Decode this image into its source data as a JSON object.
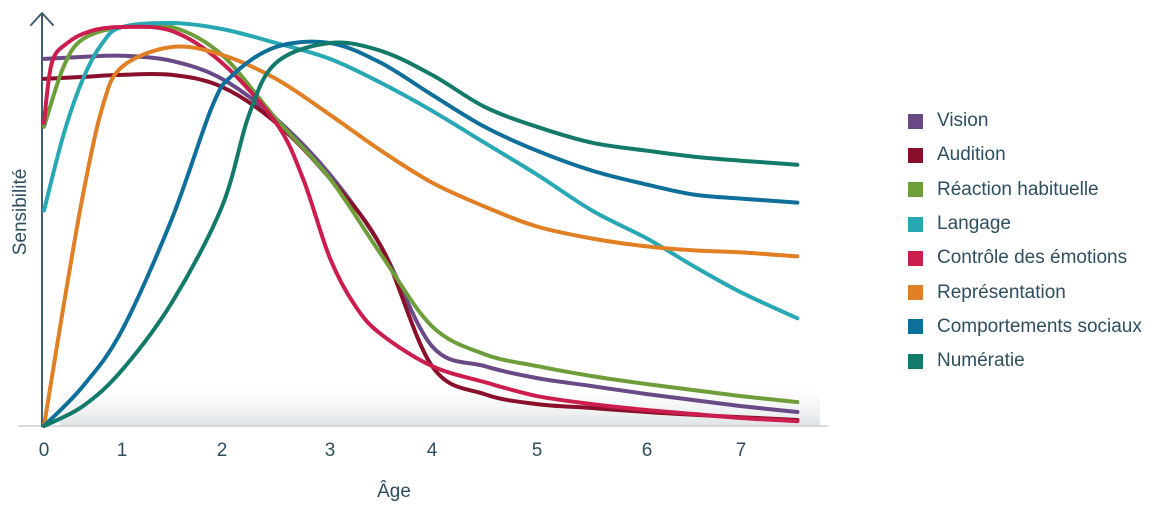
{
  "chart_data": {
    "type": "line",
    "title": "",
    "xlabel": "Âge",
    "ylabel": "Sensibilité",
    "xlim": [
      0,
      7.6
    ],
    "ylim": [
      0,
      100
    ],
    "x_ticks": [
      "0",
      "1",
      "2",
      "3",
      "4",
      "5",
      "6",
      "7"
    ],
    "y_ticks_shown": false,
    "grid": false,
    "legend_position": "right",
    "series": [
      {
        "name": "Vision",
        "color": "#6a4a86",
        "points": [
          [
            0,
            92
          ],
          [
            0.5,
            92.5
          ],
          [
            1,
            92.8
          ],
          [
            1.5,
            91.5
          ],
          [
            2,
            87
          ],
          [
            2.5,
            77
          ],
          [
            3,
            63
          ],
          [
            3.5,
            45
          ],
          [
            4,
            20
          ],
          [
            4.5,
            15
          ],
          [
            5,
            12
          ],
          [
            5.5,
            10
          ],
          [
            6,
            8
          ],
          [
            6.5,
            6.5
          ],
          [
            7,
            5
          ],
          [
            7.6,
            3.5
          ]
        ]
      },
      {
        "name": "Audition",
        "color": "#8a0f2a",
        "points": [
          [
            0,
            87
          ],
          [
            0.5,
            87.5
          ],
          [
            1,
            88
          ],
          [
            1.5,
            88
          ],
          [
            2,
            85
          ],
          [
            2.5,
            76
          ],
          [
            3,
            62
          ],
          [
            3.5,
            45
          ],
          [
            4,
            15
          ],
          [
            4.5,
            8
          ],
          [
            5,
            5.5
          ],
          [
            5.5,
            4.5
          ],
          [
            6,
            3.5
          ],
          [
            6.5,
            2.8
          ],
          [
            7,
            2.2
          ],
          [
            7.6,
            1.5
          ]
        ]
      },
      {
        "name": "Réaction habituelle",
        "color": "#6e9e3a",
        "points": [
          [
            0,
            75
          ],
          [
            0.25,
            90
          ],
          [
            0.5,
            97
          ],
          [
            1,
            100
          ],
          [
            1.5,
            100
          ],
          [
            2,
            93
          ],
          [
            2.5,
            77
          ],
          [
            3,
            62
          ],
          [
            3.5,
            43
          ],
          [
            4,
            25
          ],
          [
            4.5,
            18
          ],
          [
            5,
            15
          ],
          [
            5.5,
            12.5
          ],
          [
            6,
            10.5
          ],
          [
            6.5,
            9
          ],
          [
            7,
            7.5
          ],
          [
            7.6,
            6
          ]
        ]
      },
      {
        "name": "Langage",
        "color": "#27a8b3",
        "points": [
          [
            0,
            54
          ],
          [
            0.25,
            73
          ],
          [
            0.5,
            87
          ],
          [
            0.75,
            96
          ],
          [
            1,
            100
          ],
          [
            1.5,
            101
          ],
          [
            2,
            99.5
          ],
          [
            2.5,
            96
          ],
          [
            3,
            92
          ],
          [
            3.5,
            86
          ],
          [
            4,
            79
          ],
          [
            4.5,
            71
          ],
          [
            5,
            63
          ],
          [
            5.5,
            54
          ],
          [
            6,
            47
          ],
          [
            6.5,
            40
          ],
          [
            7,
            33.5
          ],
          [
            7.6,
            27
          ]
        ]
      },
      {
        "name": "Contrôle des émotions",
        "color": "#cc1d4f",
        "points": [
          [
            0,
            76
          ],
          [
            0.1,
            91
          ],
          [
            0.3,
            96
          ],
          [
            0.6,
            99
          ],
          [
            1,
            100
          ],
          [
            1.5,
            99
          ],
          [
            2,
            91
          ],
          [
            2.5,
            76
          ],
          [
            2.75,
            62
          ],
          [
            3,
            42
          ],
          [
            3.25,
            30
          ],
          [
            3.5,
            23
          ],
          [
            4,
            15
          ],
          [
            4.5,
            11
          ],
          [
            5,
            7.5
          ],
          [
            5.5,
            5.5
          ],
          [
            6,
            4
          ],
          [
            6.5,
            3
          ],
          [
            7,
            2
          ],
          [
            7.6,
            1.2
          ]
        ]
      },
      {
        "name": "Représentation",
        "color": "#e07f24",
        "points": [
          [
            0,
            0
          ],
          [
            0.25,
            30
          ],
          [
            0.5,
            58
          ],
          [
            0.75,
            80
          ],
          [
            1,
            90
          ],
          [
            1.5,
            95
          ],
          [
            2,
            93
          ],
          [
            2.5,
            87
          ],
          [
            3,
            78
          ],
          [
            3.5,
            69
          ],
          [
            4,
            61
          ],
          [
            4.5,
            55
          ],
          [
            5,
            50
          ],
          [
            5.5,
            47
          ],
          [
            6,
            45
          ],
          [
            6.5,
            44
          ],
          [
            7,
            43.5
          ],
          [
            7.6,
            42.5
          ]
        ]
      },
      {
        "name": "Comportements sociaux",
        "color": "#0e6f9a",
        "points": [
          [
            0,
            0
          ],
          [
            0.5,
            10
          ],
          [
            1,
            24
          ],
          [
            1.5,
            52
          ],
          [
            1.9,
            80
          ],
          [
            2.1,
            88
          ],
          [
            2.5,
            95
          ],
          [
            3,
            96
          ],
          [
            3.5,
            91
          ],
          [
            4,
            83
          ],
          [
            4.5,
            75
          ],
          [
            5,
            69
          ],
          [
            5.5,
            64
          ],
          [
            6,
            60.5
          ],
          [
            6.5,
            58
          ],
          [
            7,
            57
          ],
          [
            7.6,
            56
          ]
        ]
      },
      {
        "name": "Numératie",
        "color": "#137a6a",
        "points": [
          [
            0,
            0
          ],
          [
            0.5,
            5
          ],
          [
            1,
            14
          ],
          [
            1.5,
            31
          ],
          [
            2,
            55
          ],
          [
            2.25,
            78
          ],
          [
            2.5,
            91
          ],
          [
            3,
            96
          ],
          [
            3.5,
            94
          ],
          [
            4,
            88
          ],
          [
            4.5,
            80
          ],
          [
            5,
            75
          ],
          [
            5.5,
            71
          ],
          [
            6,
            69
          ],
          [
            6.5,
            67.5
          ],
          [
            7,
            66.5
          ],
          [
            7.6,
            65.5
          ]
        ]
      }
    ]
  }
}
